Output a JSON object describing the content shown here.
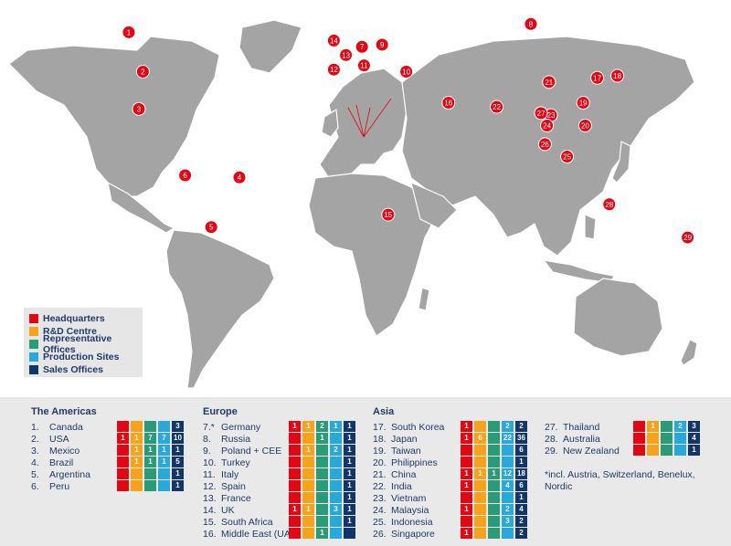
{
  "legend": {
    "items": [
      {
        "label": "Headquarters",
        "color": "#e30613"
      },
      {
        "label": "R&D Centre",
        "color": "#f7a21b"
      },
      {
        "label": "Representative Offices",
        "color": "#2a9a77"
      },
      {
        "label": "Production Sites",
        "color": "#29a8db"
      },
      {
        "label": "Sales Offices",
        "color": "#12366b"
      }
    ]
  },
  "markers": [
    {
      "n": "1",
      "lon": -105,
      "lat": 58
    },
    {
      "n": "2",
      "lon": -98,
      "lat": 39
    },
    {
      "n": "3",
      "lon": -100,
      "lat": 21
    },
    {
      "n": "4",
      "lon": -50,
      "lat": -12
    },
    {
      "n": "5",
      "lon": -64,
      "lat": -36
    },
    {
      "n": "6",
      "lon": -77,
      "lat": -11
    },
    {
      "n": "7",
      "lon": 11,
      "lat": 51
    },
    {
      "n": "8",
      "lon": 95,
      "lat": 62
    },
    {
      "n": "9",
      "lon": 21,
      "lat": 52
    },
    {
      "n": "10",
      "lon": 33,
      "lat": 39
    },
    {
      "n": "11",
      "lon": 12,
      "lat": 42
    },
    {
      "n": "12",
      "lon": -3,
      "lat": 40
    },
    {
      "n": "13",
      "lon": 3,
      "lat": 47
    },
    {
      "n": "14",
      "lon": -3,
      "lat": 54
    },
    {
      "n": "15",
      "lon": 24,
      "lat": -30
    },
    {
      "n": "16",
      "lon": 54,
      "lat": 24
    },
    {
      "n": "17",
      "lon": 128,
      "lat": 36
    },
    {
      "n": "18",
      "lon": 138,
      "lat": 37
    },
    {
      "n": "19",
      "lon": 121,
      "lat": 24
    },
    {
      "n": "20",
      "lon": 122,
      "lat": 13
    },
    {
      "n": "21",
      "lon": 104,
      "lat": 34
    },
    {
      "n": "22",
      "lon": 78,
      "lat": 22
    },
    {
      "n": "23",
      "lon": 105,
      "lat": 18
    },
    {
      "n": "24",
      "lon": 103,
      "lat": 13
    },
    {
      "n": "25",
      "lon": 113,
      "lat": -2
    },
    {
      "n": "26",
      "lon": 102,
      "lat": 4
    },
    {
      "n": "27",
      "lon": 100,
      "lat": 19
    },
    {
      "n": "28",
      "lon": 134,
      "lat": -25
    },
    {
      "n": "29",
      "lon": 173,
      "lat": -41
    }
  ],
  "table_colors": [
    "#e30613",
    "#f7a21b",
    "#2a9a77",
    "#29a8db",
    "#12366b"
  ],
  "americas": {
    "title": "The Americas",
    "rows": [
      {
        "num": "1.",
        "name": "Canada",
        "cells": [
          "",
          "",
          "",
          "",
          "3"
        ]
      },
      {
        "num": "2.",
        "name": "USA",
        "cells": [
          "1",
          "1",
          "7",
          "7",
          "10"
        ]
      },
      {
        "num": "3.",
        "name": "Mexico",
        "cells": [
          "",
          "1",
          "1",
          "1",
          "1"
        ]
      },
      {
        "num": "4.",
        "name": "Brazil",
        "cells": [
          "",
          "1",
          "1",
          "1",
          "5"
        ]
      },
      {
        "num": "5.",
        "name": "Argentina",
        "cells": [
          "",
          "",
          "",
          "",
          "1"
        ]
      },
      {
        "num": "6.",
        "name": "Peru",
        "cells": [
          "",
          "",
          "",
          "",
          "1"
        ]
      }
    ]
  },
  "europe": {
    "title": "Europe",
    "rows": [
      {
        "num": "7.*",
        "name": "Germany",
        "cells": [
          "1",
          "1",
          "2",
          "1",
          "1"
        ]
      },
      {
        "num": "8.",
        "name": "Russia",
        "cells": [
          "",
          "",
          "1",
          "",
          "1"
        ]
      },
      {
        "num": "9.",
        "name": "Poland + CEE",
        "cells": [
          "",
          "1",
          "",
          "2",
          "1"
        ]
      },
      {
        "num": "10.",
        "name": "Turkey",
        "cells": [
          "",
          "",
          "",
          "",
          "1"
        ]
      },
      {
        "num": "11.",
        "name": "Italy",
        "cells": [
          "",
          "",
          "",
          "",
          "1"
        ]
      },
      {
        "num": "12.",
        "name": "Spain",
        "cells": [
          "",
          "",
          "",
          "",
          "1"
        ]
      },
      {
        "num": "13.",
        "name": "France",
        "cells": [
          "",
          "",
          "",
          "",
          "1"
        ]
      },
      {
        "num": "14.",
        "name": "UK",
        "cells": [
          "1",
          "1",
          "",
          "3",
          "1"
        ]
      },
      {
        "num": "15.",
        "name": "South Africa",
        "cells": [
          "",
          "",
          "",
          "",
          "1"
        ]
      },
      {
        "num": "16.",
        "name": "Middle East (UAE)",
        "cells": [
          "",
          "",
          "1",
          "",
          ""
        ]
      }
    ]
  },
  "asia": {
    "title": "Asia",
    "rows": [
      {
        "num": "17.",
        "name": "South Korea",
        "cells": [
          "1",
          "",
          "",
          "2",
          "2"
        ]
      },
      {
        "num": "18.",
        "name": "Japan",
        "cells": [
          "1",
          "6",
          "",
          "22",
          "36"
        ]
      },
      {
        "num": "19.",
        "name": "Taiwan",
        "cells": [
          "",
          "",
          "",
          "",
          "6"
        ]
      },
      {
        "num": "20.",
        "name": "Philippines",
        "cells": [
          "",
          "",
          "",
          "",
          "1"
        ]
      },
      {
        "num": "21.",
        "name": "China",
        "cells": [
          "1",
          "1",
          "1",
          "12",
          "18"
        ]
      },
      {
        "num": "22.",
        "name": "India",
        "cells": [
          "1",
          "",
          "",
          "4",
          "6"
        ]
      },
      {
        "num": "23.",
        "name": "Vietnam",
        "cells": [
          "",
          "",
          "",
          "",
          "1"
        ]
      },
      {
        "num": "24.",
        "name": "Malaysia",
        "cells": [
          "1",
          "",
          "",
          "2",
          "4"
        ]
      },
      {
        "num": "25.",
        "name": "Indonesia",
        "cells": [
          "",
          "",
          "",
          "3",
          "2"
        ]
      },
      {
        "num": "26.",
        "name": "Singapore",
        "cells": [
          "1",
          "",
          "",
          "",
          "2"
        ]
      }
    ]
  },
  "oceania": {
    "rows": [
      {
        "num": "27.",
        "name": "Thailand",
        "cells": [
          "",
          "1",
          "",
          "2",
          "3"
        ]
      },
      {
        "num": "28.",
        "name": "Australia",
        "cells": [
          "",
          "",
          "",
          "",
          "4"
        ]
      },
      {
        "num": "29.",
        "name": "New Zealand",
        "cells": [
          "",
          "",
          "",
          "",
          "1"
        ]
      }
    ]
  },
  "note": "*incl. Austria, Switzerland, Benelux, Nordic"
}
